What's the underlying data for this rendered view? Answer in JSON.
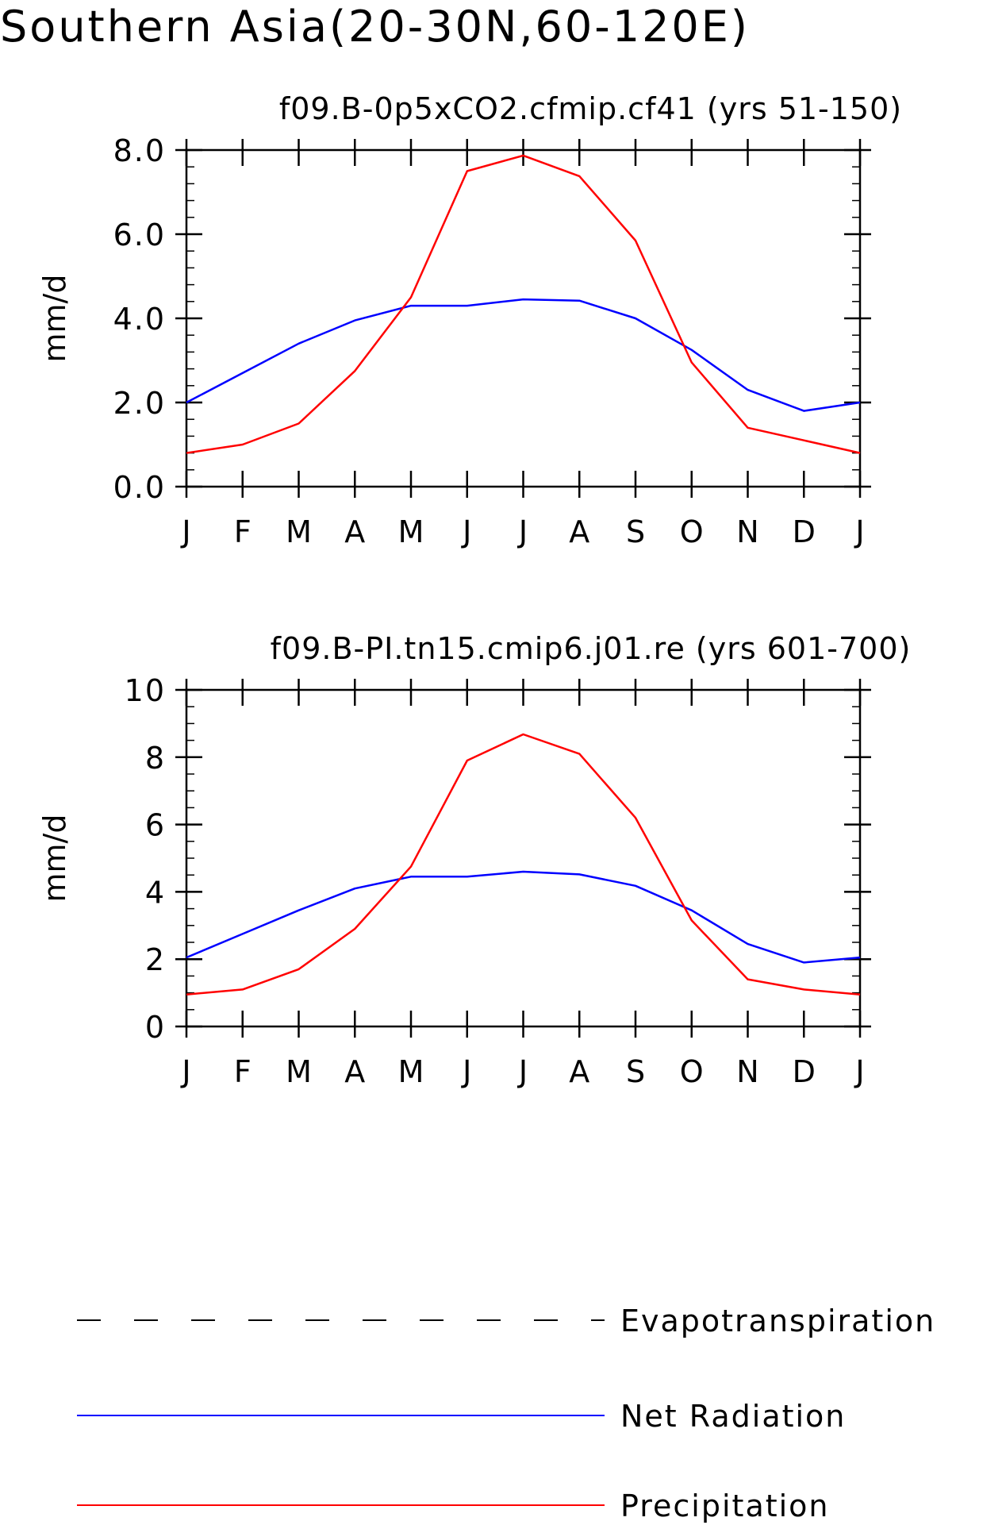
{
  "main_title": "Southern Asia(20-30N,60-120E)",
  "colors": {
    "evapotranspiration": "#000000",
    "net_radiation": "#0000ff",
    "precipitation": "#ff0000"
  },
  "legend": {
    "items": [
      {
        "name": "Evapotranspiration",
        "color": "#000000",
        "style": "dashed"
      },
      {
        "name": "Net Radiation",
        "color": "#0000ff",
        "style": "solid"
      },
      {
        "name": "Precipitation",
        "color": "#ff0000",
        "style": "solid"
      }
    ],
    "placement": "bottom"
  },
  "chart_data": [
    {
      "type": "line",
      "title": "f09.B-0p5xCO2.cfmip.cf41 (yrs 51-150)",
      "xlabel": "",
      "ylabel": "mm/d",
      "categories": [
        "J",
        "F",
        "M",
        "A",
        "M",
        "J",
        "J",
        "A",
        "S",
        "O",
        "N",
        "D",
        "J"
      ],
      "ylim": [
        0,
        8
      ],
      "yticks": [
        0,
        2,
        4,
        6,
        8
      ],
      "ytick_labels": [
        "0.0",
        "2.0",
        "4.0",
        "6.0",
        "8.0"
      ],
      "yminor_step": 0.4,
      "series": [
        {
          "name": "Net Radiation",
          "color": "#0000ff",
          "values": [
            2.0,
            2.7,
            3.4,
            3.95,
            4.3,
            4.3,
            4.45,
            4.42,
            4.0,
            3.25,
            2.3,
            1.8,
            2.0
          ]
        },
        {
          "name": "Precipitation",
          "color": "#ff0000",
          "values": [
            0.8,
            1.0,
            1.5,
            2.75,
            4.5,
            7.5,
            7.87,
            7.38,
            5.85,
            2.95,
            1.4,
            1.1,
            0.8
          ]
        }
      ]
    },
    {
      "type": "line",
      "title": "f09.B-PI.tn15.cmip6.j01.re (yrs 601-700)",
      "xlabel": "",
      "ylabel": "mm/d",
      "categories": [
        "J",
        "F",
        "M",
        "A",
        "M",
        "J",
        "J",
        "A",
        "S",
        "O",
        "N",
        "D",
        "J"
      ],
      "ylim": [
        0,
        10
      ],
      "yticks": [
        0,
        2,
        4,
        6,
        8,
        10
      ],
      "ytick_labels": [
        "0",
        "2",
        "4",
        "6",
        "8",
        "10"
      ],
      "yminor_step": 0.5,
      "series": [
        {
          "name": "Net Radiation",
          "color": "#0000ff",
          "values": [
            2.05,
            2.75,
            3.45,
            4.1,
            4.45,
            4.45,
            4.6,
            4.52,
            4.18,
            3.45,
            2.45,
            1.9,
            2.05
          ]
        },
        {
          "name": "Precipitation",
          "color": "#ff0000",
          "values": [
            0.95,
            1.1,
            1.7,
            2.9,
            4.75,
            7.9,
            8.68,
            8.1,
            6.2,
            3.15,
            1.4,
            1.1,
            0.95
          ]
        }
      ]
    }
  ]
}
